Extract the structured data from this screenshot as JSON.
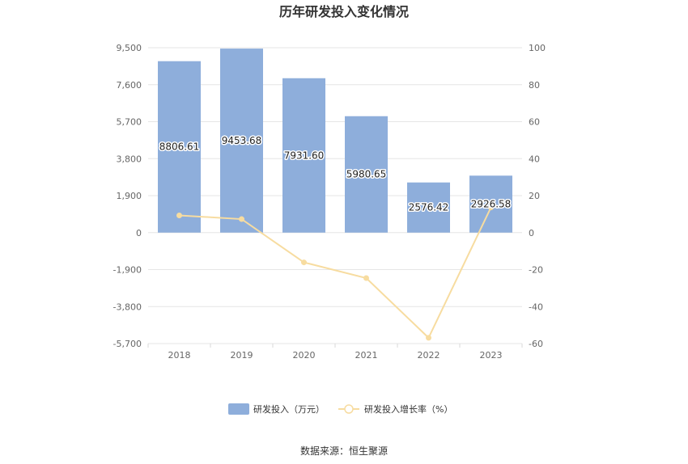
{
  "chart_data": {
    "type": "bar",
    "title": "历年研发投入变化情况",
    "categories": [
      "2018",
      "2019",
      "2020",
      "2021",
      "2022",
      "2023"
    ],
    "series": [
      {
        "name": "研发投入（万元）",
        "type": "bar",
        "axis": "left",
        "color": "#8eaedb",
        "values": [
          8806.61,
          9453.68,
          7931.6,
          5980.65,
          2576.42,
          2926.58
        ]
      },
      {
        "name": "研发投入增长率（%）",
        "type": "line",
        "axis": "right",
        "color": "#f7dca0",
        "values": [
          9.3,
          7.3,
          -16.1,
          -24.6,
          -56.9,
          13.6
        ]
      }
    ],
    "y_left": {
      "ticks": [
        "9,500",
        "7,600",
        "5,700",
        "3,800",
        "1,900",
        "0",
        "-1,900",
        "-3,800",
        "-5,700"
      ],
      "ylim": [
        -5700,
        9500
      ]
    },
    "y_right": {
      "ticks": [
        "100",
        "80",
        "60",
        "40",
        "20",
        "0",
        "-20",
        "-40",
        "-60"
      ],
      "ylim": [
        -60,
        100
      ]
    },
    "data_labels": [
      "8806.61",
      "9453.68",
      "7931.60",
      "5980.65",
      "2576.42",
      "2926.58"
    ],
    "grid": true,
    "legend_position": "bottom"
  },
  "source_text": "数据来源：恒生聚源"
}
